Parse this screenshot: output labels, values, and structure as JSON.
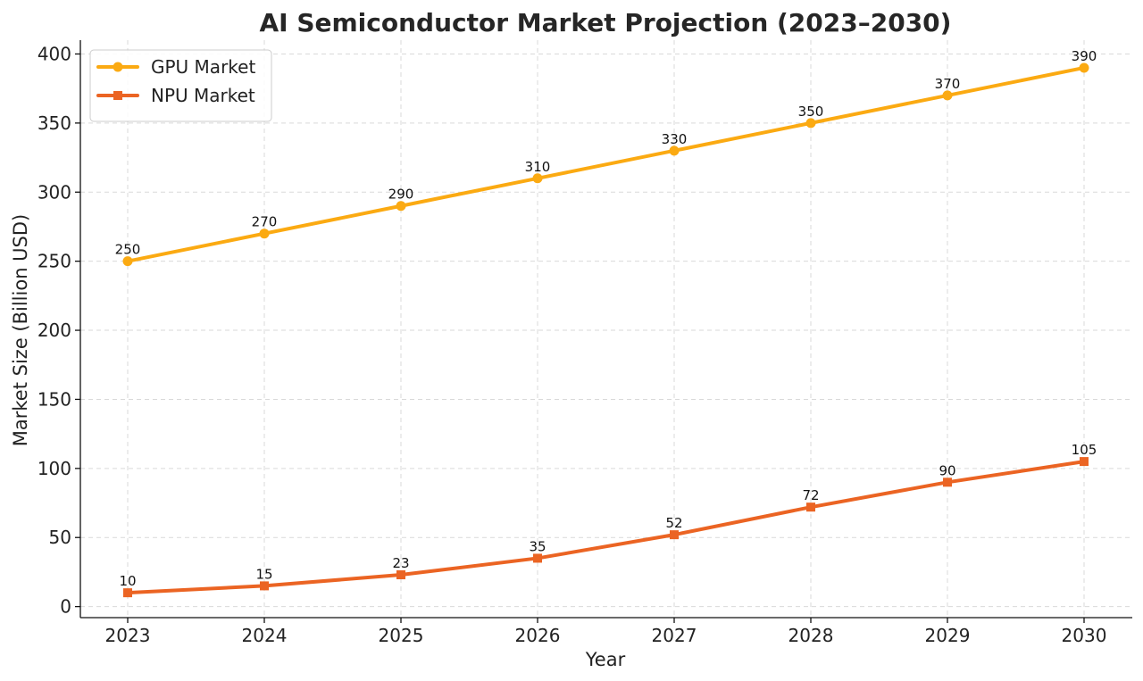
{
  "chart_data": {
    "type": "line",
    "title": "AI Semiconductor Market Projection (2023–2030)",
    "xlabel": "Year",
    "ylabel": "Market Size (Billion USD)",
    "categories": [
      "2023",
      "2024",
      "2025",
      "2026",
      "2027",
      "2028",
      "2029",
      "2030"
    ],
    "ylim": [
      -8,
      410
    ],
    "yticks": [
      0,
      50,
      100,
      150,
      200,
      250,
      300,
      350,
      400
    ],
    "grid": true,
    "legend_position": "top-left",
    "series": [
      {
        "name": "GPU Market",
        "color": "#FBAA12",
        "marker": "circle",
        "values": [
          250,
          270,
          290,
          310,
          330,
          350,
          370,
          390
        ]
      },
      {
        "name": "NPU Market",
        "color": "#EB6423",
        "marker": "square",
        "values": [
          10,
          15,
          23,
          35,
          52,
          72,
          90,
          105
        ]
      }
    ]
  }
}
